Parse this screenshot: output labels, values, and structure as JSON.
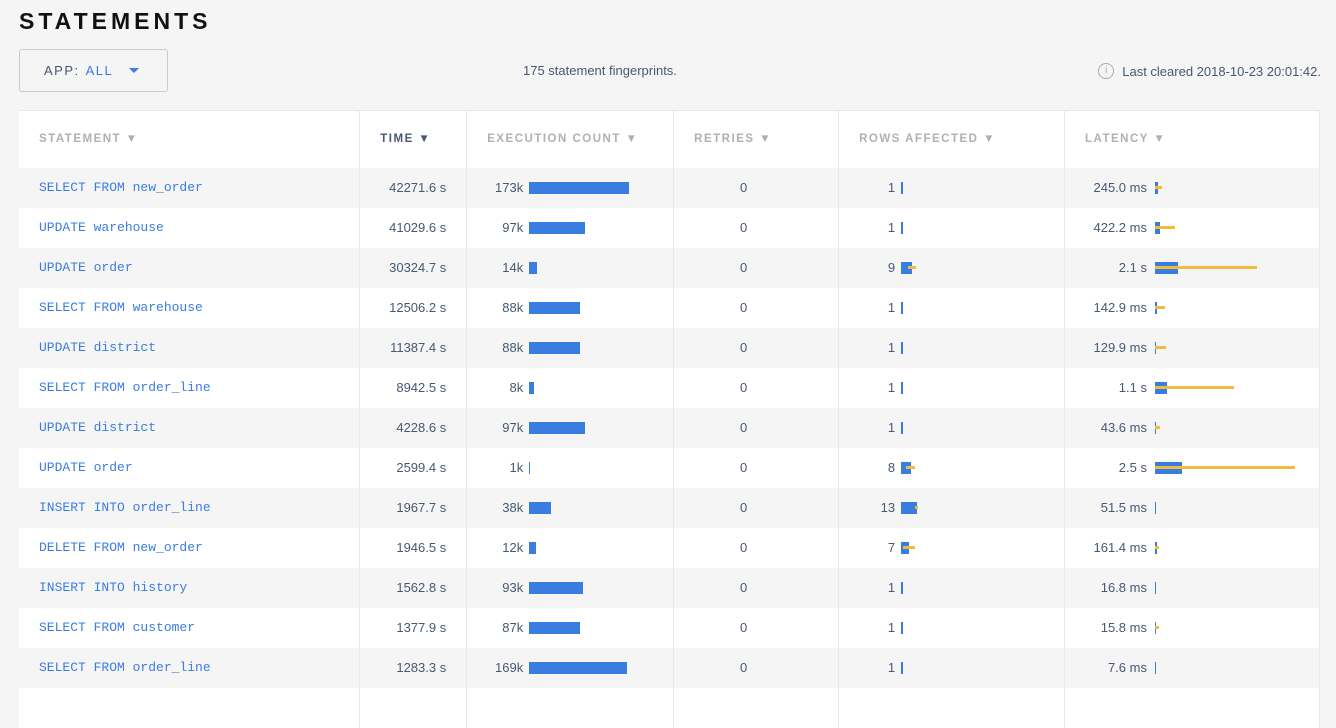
{
  "title": "STATEMENTS",
  "app_filter": {
    "label": "APP:",
    "value": "ALL"
  },
  "fingerprint_count": "175 statement fingerprints.",
  "last_cleared": "Last cleared 2018-10-23 20:01:42.",
  "columns": [
    "STATEMENT ▼",
    "TIME ▼",
    "EXECUTION COUNT ▼",
    "RETRIES ▼",
    "ROWS AFFECTED ▼",
    "LATENCY ▼"
  ],
  "sorted_column": "TIME",
  "colors": {
    "mean": "#3a7de1",
    "stddev": "#f2bb3d",
    "link": "#3a7de1"
  },
  "rows": [
    {
      "statement": "SELECT FROM new_order",
      "time": "42271.6 s",
      "count": "173k",
      "count_k": 173,
      "retries": "0",
      "rows": "1",
      "rows_mean": 1,
      "rows_dev": 0,
      "latency": "245.0 ms",
      "lat_s": 0.245,
      "lat_dev": 0.4
    },
    {
      "statement": "UPDATE warehouse",
      "time": "41029.6 s",
      "count": "97k",
      "count_k": 97,
      "retries": "0",
      "rows": "1",
      "rows_mean": 1,
      "rows_dev": 0,
      "latency": "422.2 ms",
      "lat_s": 0.422,
      "lat_dev": 1.4
    },
    {
      "statement": "UPDATE order",
      "time": "30324.7 s",
      "count": "14k",
      "count_k": 14,
      "retries": "0",
      "rows": "9",
      "rows_mean": 9,
      "rows_dev": 3.5,
      "latency": "2.1 s",
      "lat_s": 2.1,
      "lat_dev": 7.2
    },
    {
      "statement": "SELECT FROM warehouse",
      "time": "12506.2 s",
      "count": "88k",
      "count_k": 88,
      "retries": "0",
      "rows": "1",
      "rows_mean": 1,
      "rows_dev": 0,
      "latency": "142.9 ms",
      "lat_s": 0.143,
      "lat_dev": 0.77
    },
    {
      "statement": "UPDATE district",
      "time": "11387.4 s",
      "count": "88k",
      "count_k": 88,
      "retries": "0",
      "rows": "1",
      "rows_mean": 1,
      "rows_dev": 0,
      "latency": "129.9 ms",
      "lat_s": 0.13,
      "lat_dev": 0.87
    },
    {
      "statement": "SELECT FROM order_line",
      "time": "8942.5 s",
      "count": "8k",
      "count_k": 8,
      "retries": "0",
      "rows": "1",
      "rows_mean": 1,
      "rows_dev": 0,
      "latency": "1.1 s",
      "lat_s": 1.1,
      "lat_dev": 6.1
    },
    {
      "statement": "UPDATE district",
      "time": "4228.6 s",
      "count": "97k",
      "count_k": 97,
      "retries": "0",
      "rows": "1",
      "rows_mean": 1,
      "rows_dev": 0,
      "latency": "43.6 ms",
      "lat_s": 0.044,
      "lat_dev": 0.4
    },
    {
      "statement": "UPDATE order",
      "time": "2599.4 s",
      "count": "1k",
      "count_k": 1,
      "retries": "0",
      "rows": "8",
      "rows_mean": 8,
      "rows_dev": 4,
      "latency": "2.5 s",
      "lat_s": 2.5,
      "lat_dev": 10.2
    },
    {
      "statement": "INSERT INTO order_line",
      "time": "1967.7 s",
      "count": "38k",
      "count_k": 38,
      "retries": "0",
      "rows": "13",
      "rows_mean": 13,
      "rows_dev": 1.5,
      "latency": "51.5 ms",
      "lat_s": 0.052,
      "lat_dev": 0
    },
    {
      "statement": "DELETE FROM new_order",
      "time": "1946.5 s",
      "count": "12k",
      "count_k": 12,
      "retries": "0",
      "rows": "7",
      "rows_mean": 7,
      "rows_dev": 5,
      "latency": "161.4 ms",
      "lat_s": 0.161,
      "lat_dev": 0.2
    },
    {
      "statement": "INSERT INTO history",
      "time": "1562.8 s",
      "count": "93k",
      "count_k": 93,
      "retries": "0",
      "rows": "1",
      "rows_mean": 1,
      "rows_dev": 0,
      "latency": "16.8 ms",
      "lat_s": 0.017,
      "lat_dev": 0
    },
    {
      "statement": "SELECT FROM customer",
      "time": "1377.9 s",
      "count": "87k",
      "count_k": 87,
      "retries": "0",
      "rows": "1",
      "rows_mean": 1,
      "rows_dev": 0,
      "latency": "15.8 ms",
      "lat_s": 0.016,
      "lat_dev": 0.35
    },
    {
      "statement": "SELECT FROM order_line",
      "time": "1283.3 s",
      "count": "169k",
      "count_k": 169,
      "retries": "0",
      "rows": "1",
      "rows_mean": 1,
      "rows_dev": 0,
      "latency": "7.6 ms",
      "lat_s": 0.008,
      "lat_dev": 0
    }
  ]
}
